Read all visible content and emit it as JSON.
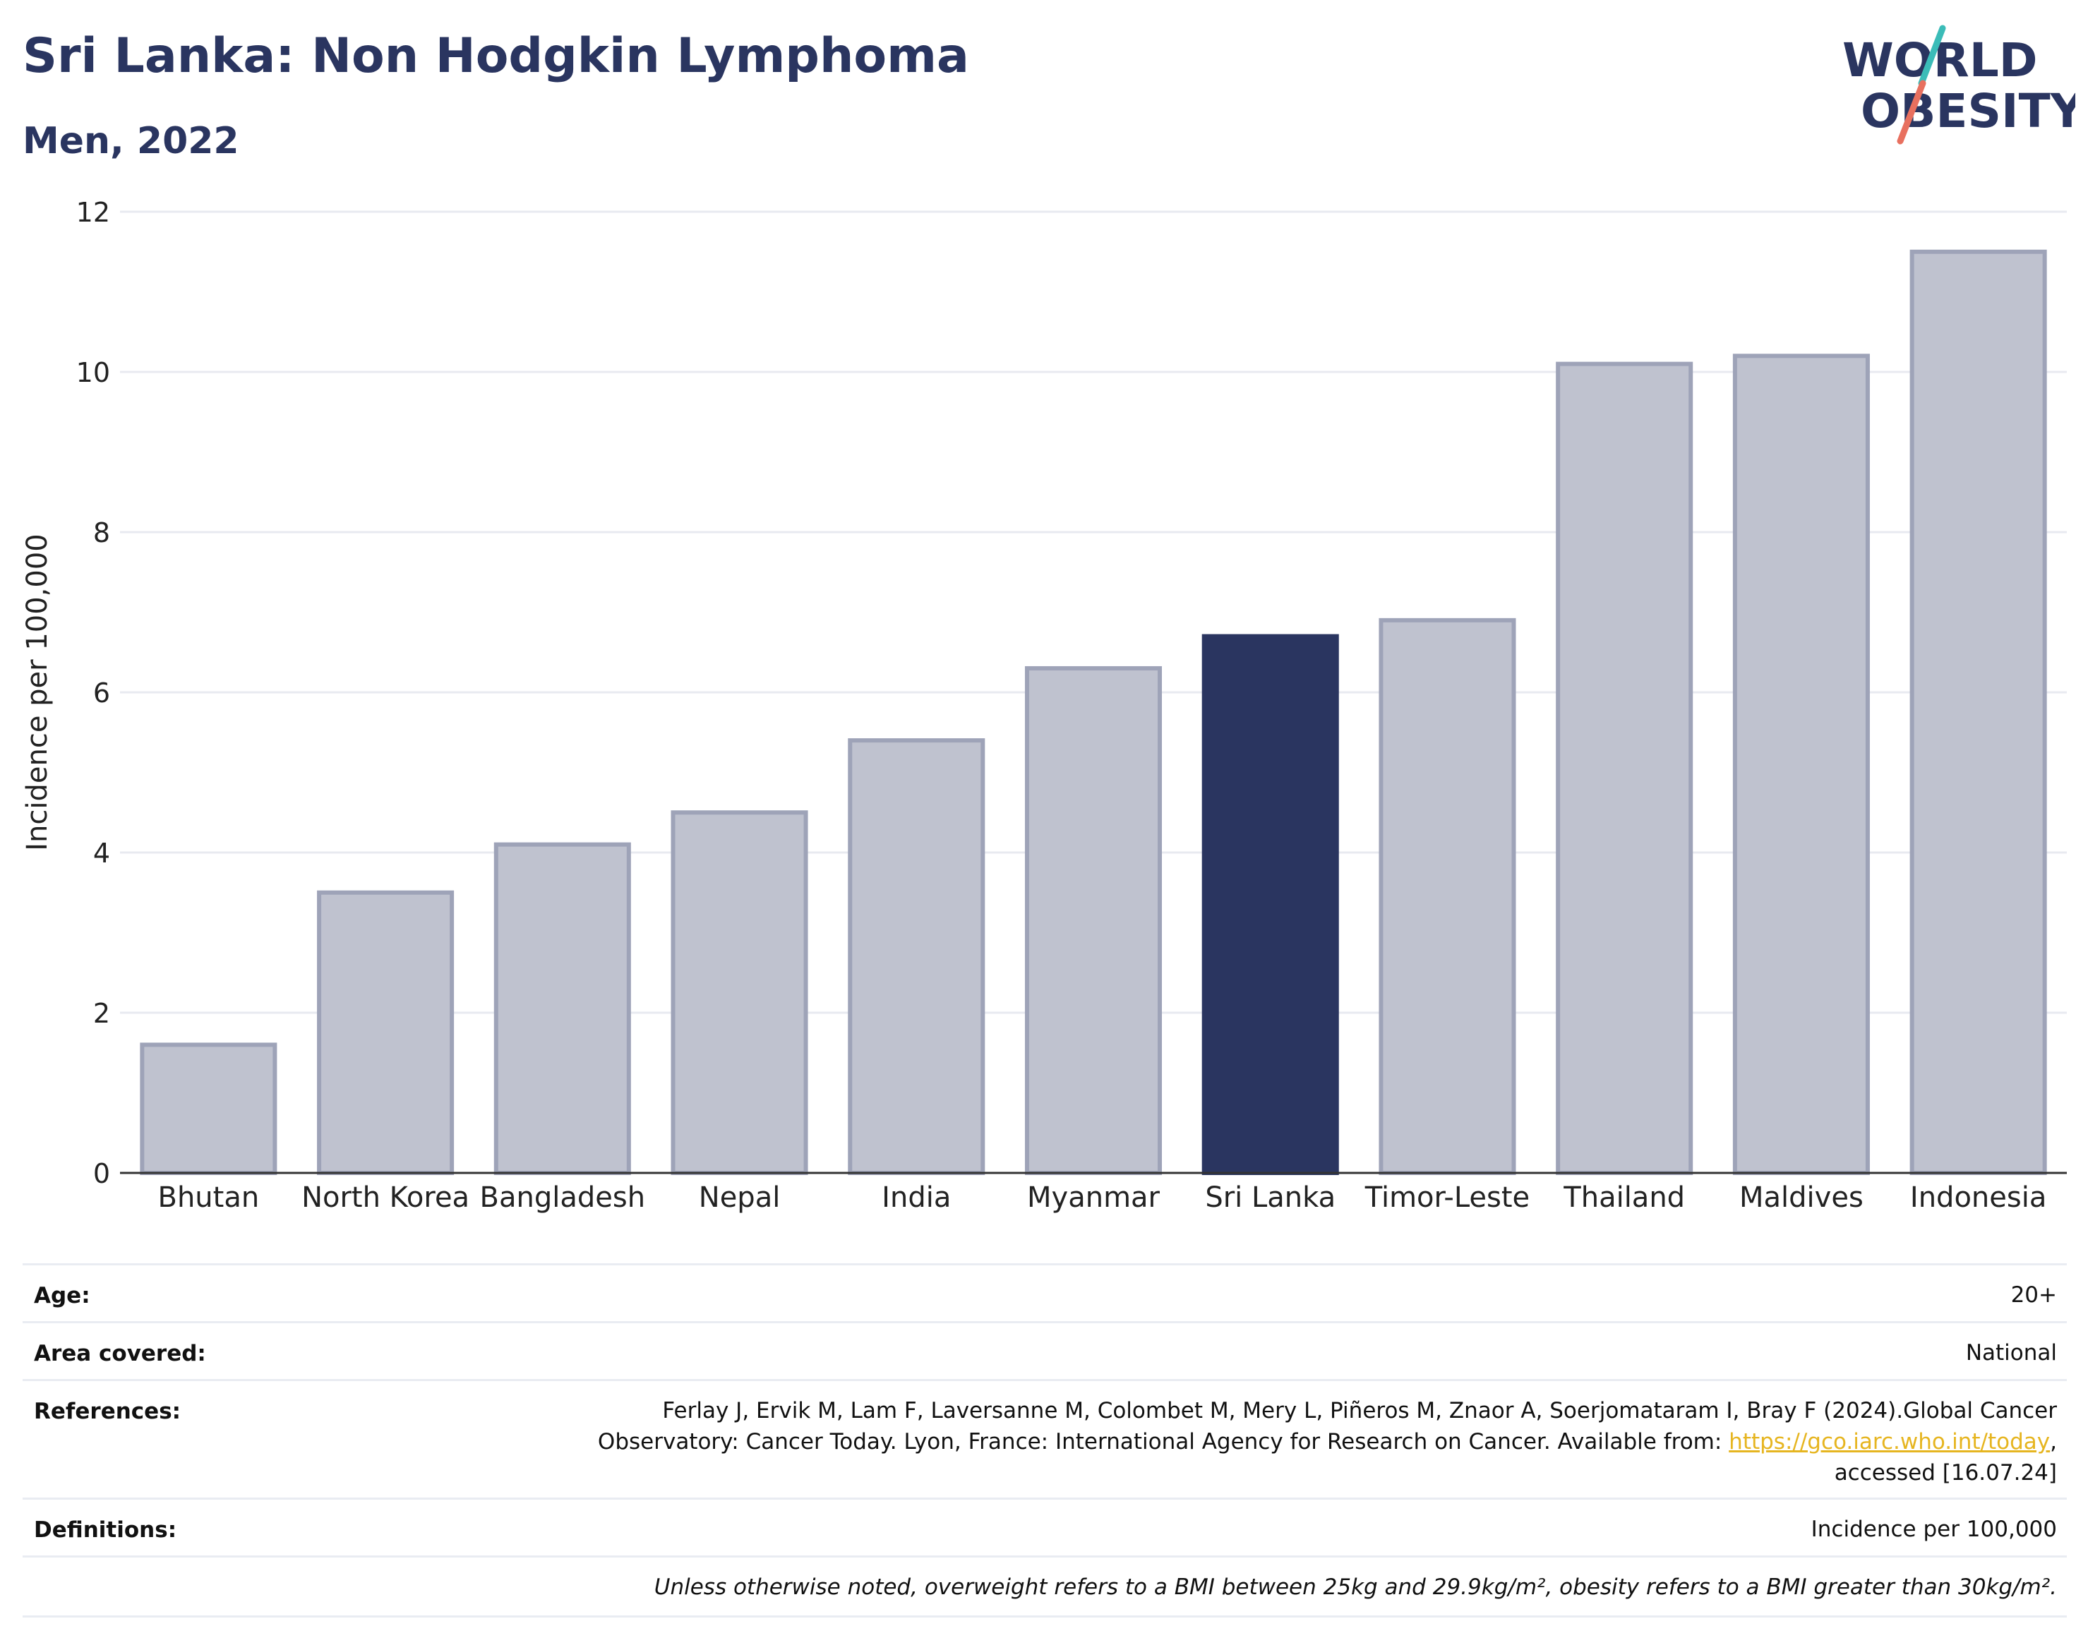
{
  "header": {
    "title": "Sri Lanka: Non Hodgkin Lymphoma",
    "subtitle": "Men, 2022"
  },
  "logo": {
    "line1": "WORLD",
    "line2": "OBESITY",
    "colors": {
      "text": "#2a3560",
      "slash_teal": "#3bbcb8",
      "slash_coral": "#e8705f"
    }
  },
  "chart_data": {
    "type": "bar",
    "categories": [
      "Bhutan",
      "North Korea",
      "Bangladesh",
      "Nepal",
      "India",
      "Myanmar",
      "Sri Lanka",
      "Timor-Leste",
      "Thailand",
      "Maldives",
      "Indonesia"
    ],
    "values": [
      1.6,
      3.5,
      4.1,
      4.5,
      5.4,
      6.3,
      6.7,
      6.9,
      10.1,
      10.2,
      11.5
    ],
    "highlight": "Sri Lanka",
    "ylabel": "Incidence per 100,000",
    "xlabel": "",
    "ylim": [
      0,
      12
    ],
    "yticks": [
      0,
      2,
      4,
      6,
      8,
      10,
      12
    ],
    "grid": true,
    "colors": {
      "bar": "#bfc2cf",
      "bar_edge": "#9ea3b8",
      "highlight": "#2a3560",
      "grid": "#e8eaf0",
      "axis": "#333333"
    }
  },
  "meta": {
    "age_label": "Age:",
    "age_value": "20+",
    "area_label": "Area covered:",
    "area_value": "National",
    "references_label": "References:",
    "references_line1": "Ferlay J, Ervik M, Lam F, Laversanne M, Colombet M, Mery L, Piñeros M, Znaor A, Soerjomataram I, Bray F (2024).Global Cancer",
    "references_line2": "Observatory: Cancer Today. Lyon, France: International Agency for Research on Cancer. Available from: ",
    "references_link": "https://gco.iarc.who.int/today",
    "references_line2_end": ",",
    "references_line3": "accessed [16.07.24]",
    "definitions_label": "Definitions:",
    "definitions_value": "Incidence per 100,000",
    "note": "Unless otherwise noted, overweight refers to a BMI between 25kg and 29.9kg/m², obesity refers to a BMI greater than 30kg/m²."
  }
}
